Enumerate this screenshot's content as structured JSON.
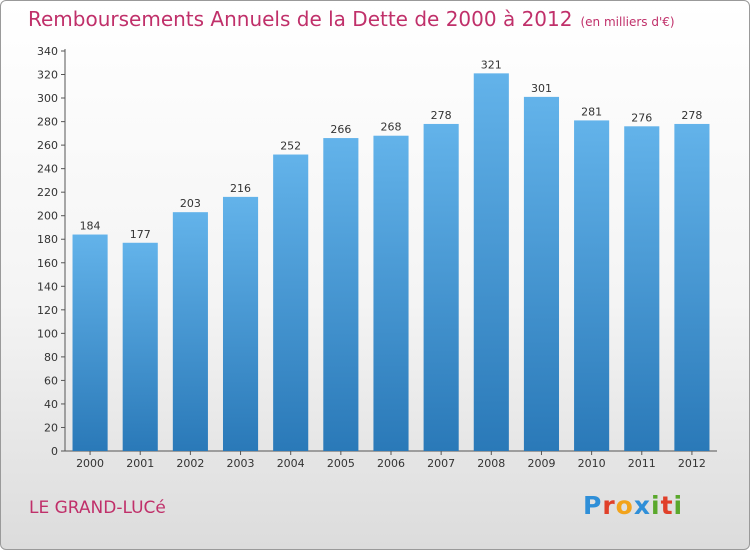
{
  "header": {
    "title": "Remboursements Annuels de la Dette de 2000 à 2012",
    "subtitle": "(en milliers d'€)"
  },
  "footer": {
    "place": "LE GRAND-LUCé",
    "brand_letters": [
      "P",
      "r",
      "o",
      "x",
      "i",
      "t",
      "i"
    ]
  },
  "colors": {
    "title": "#c0306a",
    "bar_top": "#63b3ea",
    "bar_bottom": "#2a79b8",
    "brand": [
      "#2f8fd8",
      "#e0402a",
      "#f2a31b",
      "#2f8fd8",
      "#5aa82c",
      "#e0402a",
      "#5aa82c"
    ]
  },
  "chart_data": {
    "type": "bar",
    "categories": [
      "2000",
      "2001",
      "2002",
      "2003",
      "2004",
      "2005",
      "2006",
      "2007",
      "2008",
      "2009",
      "2010",
      "2011",
      "2012"
    ],
    "values": [
      184,
      177,
      203,
      216,
      252,
      266,
      268,
      278,
      321,
      301,
      281,
      276,
      278
    ],
    "ylim": [
      0,
      340
    ],
    "ytick_step": 20,
    "grid": false,
    "data_labels": true
  }
}
